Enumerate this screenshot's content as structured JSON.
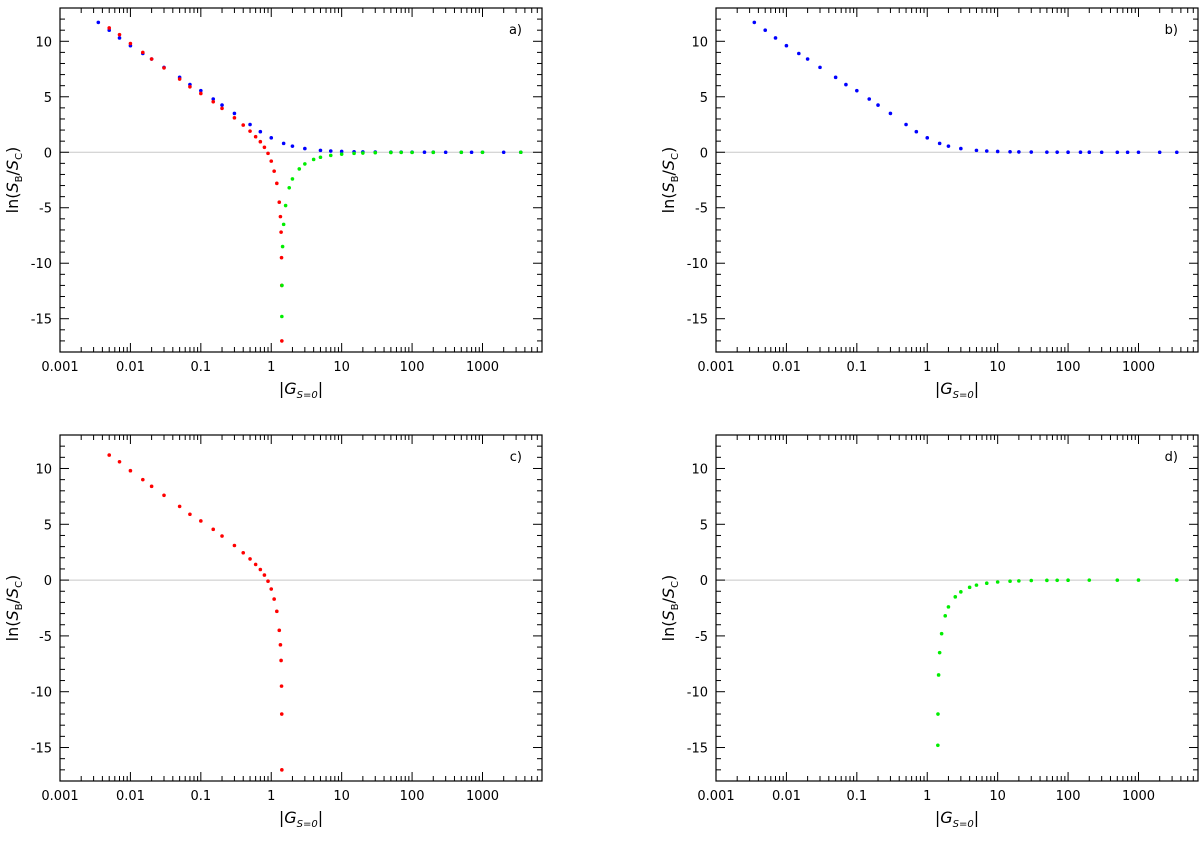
{
  "figure": {
    "panel_count": 4
  },
  "chart_data": [
    {
      "type": "scatter",
      "panel_label": "a)",
      "xscale": "log",
      "xlim": [
        0.001,
        7000
      ],
      "ylim": [
        -18,
        13
      ],
      "x_ticks": [
        0.001,
        0.01,
        0.1,
        1,
        10,
        100,
        1000
      ],
      "x_tick_labels": [
        "0.001",
        "0.01",
        "0.1",
        "1",
        "10",
        "100",
        "1000"
      ],
      "y_ticks": [
        10,
        5,
        0,
        -5,
        -10,
        -15
      ],
      "y_tick_labels": [
        "10",
        "5",
        "0",
        "-5",
        "-10",
        "-15"
      ],
      "xlabel": {
        "pre": "|",
        "main": "G",
        "sub": "S=0",
        "post": "|"
      },
      "ylabel": {
        "pre": "ln(",
        "s1": "S",
        "sub1": "B",
        "slash": "/",
        "s2": "S",
        "sub2": "C",
        "post": ")"
      },
      "zero_line": true,
      "series": [
        {
          "color": "#0000ff",
          "x": [
            0.0035,
            0.005,
            0.007,
            0.01,
            0.015,
            0.02,
            0.03,
            0.05,
            0.07,
            0.1,
            0.15,
            0.2,
            0.3,
            0.5,
            0.7,
            1,
            1.5,
            2,
            3,
            5,
            7,
            10,
            15,
            20,
            30,
            50,
            70,
            100,
            150,
            200,
            300,
            500,
            700,
            1000,
            2000,
            3500
          ],
          "y": [
            11.7,
            11.0,
            10.3,
            9.6,
            8.9,
            8.4,
            7.65,
            6.75,
            6.1,
            5.55,
            4.8,
            4.25,
            3.5,
            2.5,
            1.85,
            1.3,
            0.8,
            0.55,
            0.33,
            0.17,
            0.11,
            0.07,
            0.045,
            0.03,
            0.02,
            0.012,
            0.008,
            0.005,
            0.003,
            0.002,
            0.0015,
            0.001,
            0.001,
            0.0005,
            0.0003,
            0.0002
          ]
        },
        {
          "color": "#ff0000",
          "x": [
            0.005,
            0.007,
            0.01,
            0.015,
            0.02,
            0.03,
            0.05,
            0.07,
            0.1,
            0.15,
            0.2,
            0.3,
            0.4,
            0.5,
            0.6,
            0.7,
            0.8,
            0.9,
            1.0,
            1.1,
            1.2,
            1.3,
            1.35,
            1.38,
            1.4,
            1.41,
            1.414
          ],
          "y": [
            11.2,
            10.6,
            9.8,
            9.0,
            8.4,
            7.6,
            6.6,
            5.9,
            5.3,
            4.55,
            3.95,
            3.1,
            2.45,
            1.9,
            1.4,
            0.95,
            0.45,
            -0.1,
            -0.8,
            -1.7,
            -2.8,
            -4.5,
            -5.8,
            -7.2,
            -9.5,
            -12.0,
            -17.0
          ]
        },
        {
          "color": "#00ee00",
          "x": [
            1.414,
            1.42,
            1.45,
            1.5,
            1.6,
            1.8,
            2.0,
            2.5,
            3,
            4,
            5,
            7,
            10,
            15,
            20,
            30,
            50,
            70,
            100,
            200,
            500,
            1000,
            3500
          ],
          "y": [
            -14.8,
            -12.0,
            -8.5,
            -6.5,
            -4.8,
            -3.2,
            -2.4,
            -1.5,
            -1.05,
            -0.65,
            -0.45,
            -0.28,
            -0.17,
            -0.1,
            -0.07,
            -0.04,
            -0.02,
            -0.015,
            -0.01,
            -0.005,
            -0.002,
            -0.001,
            -0.0003
          ]
        }
      ]
    },
    {
      "type": "scatter",
      "panel_label": "b)",
      "xscale": "log",
      "xlim": [
        0.001,
        7000
      ],
      "ylim": [
        -18,
        13
      ],
      "x_ticks": [
        0.001,
        0.01,
        0.1,
        1,
        10,
        100,
        1000
      ],
      "x_tick_labels": [
        "0.001",
        "0.01",
        "0.1",
        "1",
        "10",
        "100",
        "1000"
      ],
      "y_ticks": [
        10,
        5,
        0,
        -5,
        -10,
        -15
      ],
      "y_tick_labels": [
        "10",
        "5",
        "0",
        "-5",
        "-10",
        "-15"
      ],
      "xlabel": {
        "pre": "|",
        "main": "G",
        "sub": "S=0",
        "post": "|"
      },
      "ylabel": {
        "pre": "ln(",
        "s1": "S",
        "sub1": "B",
        "slash": "/",
        "s2": "S",
        "sub2": "C",
        "post": ")"
      },
      "zero_line": true,
      "series": [
        {
          "color": "#0000ff",
          "x": [
            0.0035,
            0.005,
            0.007,
            0.01,
            0.015,
            0.02,
            0.03,
            0.05,
            0.07,
            0.1,
            0.15,
            0.2,
            0.3,
            0.5,
            0.7,
            1,
            1.5,
            2,
            3,
            5,
            7,
            10,
            15,
            20,
            30,
            50,
            70,
            100,
            150,
            200,
            300,
            500,
            700,
            1000,
            2000,
            3500
          ],
          "y": [
            11.7,
            11.0,
            10.3,
            9.6,
            8.9,
            8.4,
            7.65,
            6.75,
            6.1,
            5.55,
            4.8,
            4.25,
            3.5,
            2.5,
            1.85,
            1.3,
            0.8,
            0.55,
            0.33,
            0.17,
            0.11,
            0.07,
            0.045,
            0.03,
            0.02,
            0.012,
            0.008,
            0.005,
            0.003,
            0.002,
            0.0015,
            0.001,
            0.001,
            0.0005,
            0.0003,
            0.0002
          ]
        }
      ]
    },
    {
      "type": "scatter",
      "panel_label": "c)",
      "xscale": "log",
      "xlim": [
        0.001,
        7000
      ],
      "ylim": [
        -18,
        13
      ],
      "x_ticks": [
        0.001,
        0.01,
        0.1,
        1,
        10,
        100,
        1000
      ],
      "x_tick_labels": [
        "0.001",
        "0.01",
        "0.1",
        "1",
        "10",
        "100",
        "1000"
      ],
      "y_ticks": [
        10,
        5,
        0,
        -5,
        -10,
        -15
      ],
      "y_tick_labels": [
        "10",
        "5",
        "0",
        "-5",
        "-10",
        "-15"
      ],
      "xlabel": {
        "pre": "|",
        "main": "G",
        "sub": "S=0",
        "post": "|"
      },
      "ylabel": {
        "pre": "ln(",
        "s1": "S",
        "sub1": "B",
        "slash": "/",
        "s2": "S",
        "sub2": "C",
        "post": ")"
      },
      "zero_line": true,
      "series": [
        {
          "color": "#ff0000",
          "x": [
            0.005,
            0.007,
            0.01,
            0.015,
            0.02,
            0.03,
            0.05,
            0.07,
            0.1,
            0.15,
            0.2,
            0.3,
            0.4,
            0.5,
            0.6,
            0.7,
            0.8,
            0.9,
            1.0,
            1.1,
            1.2,
            1.3,
            1.35,
            1.38,
            1.4,
            1.41,
            1.414
          ],
          "y": [
            11.2,
            10.6,
            9.8,
            9.0,
            8.4,
            7.6,
            6.6,
            5.9,
            5.3,
            4.55,
            3.95,
            3.1,
            2.45,
            1.9,
            1.4,
            0.95,
            0.45,
            -0.1,
            -0.8,
            -1.7,
            -2.8,
            -4.5,
            -5.8,
            -7.2,
            -9.5,
            -12.0,
            -17.0
          ]
        }
      ]
    },
    {
      "type": "scatter",
      "panel_label": "d)",
      "xscale": "log",
      "xlim": [
        0.001,
        7000
      ],
      "ylim": [
        -18,
        13
      ],
      "x_ticks": [
        0.001,
        0.01,
        0.1,
        1,
        10,
        100,
        1000
      ],
      "x_tick_labels": [
        "0.001",
        "0.01",
        "0.1",
        "1",
        "10",
        "100",
        "1000"
      ],
      "y_ticks": [
        10,
        5,
        0,
        -5,
        -10,
        -15
      ],
      "y_tick_labels": [
        "10",
        "5",
        "0",
        "-5",
        "-10",
        "-15"
      ],
      "xlabel": {
        "pre": "|",
        "main": "G",
        "sub": "S=0",
        "post": "|"
      },
      "ylabel": {
        "pre": "ln(",
        "s1": "S",
        "sub1": "B",
        "slash": "/",
        "s2": "S",
        "sub2": "C",
        "post": ")"
      },
      "zero_line": true,
      "series": [
        {
          "color": "#00ee00",
          "x": [
            1.414,
            1.42,
            1.45,
            1.5,
            1.6,
            1.8,
            2.0,
            2.5,
            3,
            4,
            5,
            7,
            10,
            15,
            20,
            30,
            50,
            70,
            100,
            200,
            500,
            1000,
            3500
          ],
          "y": [
            -14.8,
            -12.0,
            -8.5,
            -6.5,
            -4.8,
            -3.2,
            -2.4,
            -1.5,
            -1.05,
            -0.65,
            -0.45,
            -0.28,
            -0.17,
            -0.1,
            -0.07,
            -0.04,
            -0.02,
            -0.015,
            -0.01,
            -0.005,
            -0.002,
            -0.001,
            -0.0003
          ]
        }
      ]
    }
  ]
}
